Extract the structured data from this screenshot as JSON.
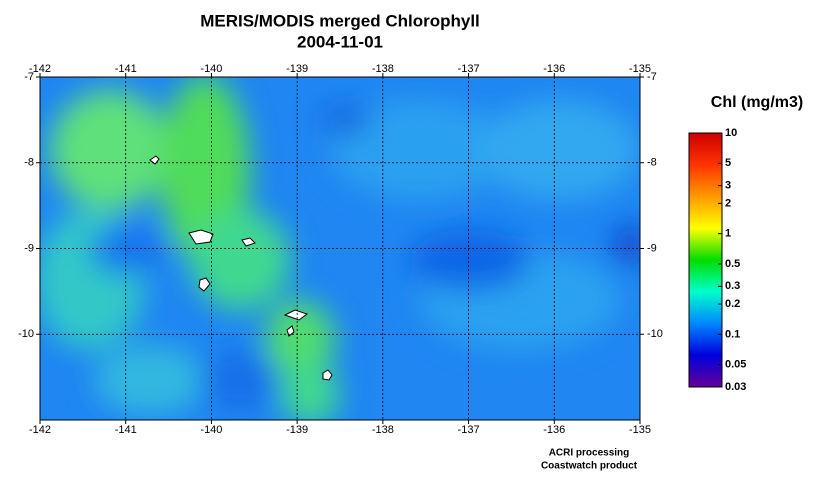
{
  "title": "MERIS/MODIS merged Chlorophyll",
  "date": "2004-11-01",
  "map": {
    "xlim": [
      -142,
      -135
    ],
    "ylim": [
      -11,
      -7
    ],
    "xticks": [
      -142,
      -141,
      -140,
      -139,
      -138,
      -137,
      -136,
      -135
    ],
    "yticks": [
      -10,
      -9,
      -8,
      -7
    ],
    "grid": true
  },
  "colorbar": {
    "title": "Chl (mg/m3)",
    "scale": "log",
    "lim": [
      0.03,
      10
    ],
    "ticks": [
      10,
      5,
      3,
      2,
      1,
      0.5,
      0.3,
      0.2,
      0.1,
      0.05,
      0.03
    ],
    "colors": [
      "#cc0000",
      "#ff3300",
      "#ff9900",
      "#ffff00",
      "#00dd00",
      "#00ffcc",
      "#0088ff",
      "#0000dd",
      "#660099"
    ]
  },
  "credits": [
    "ACRI processing",
    "Coastwatch product"
  ]
}
